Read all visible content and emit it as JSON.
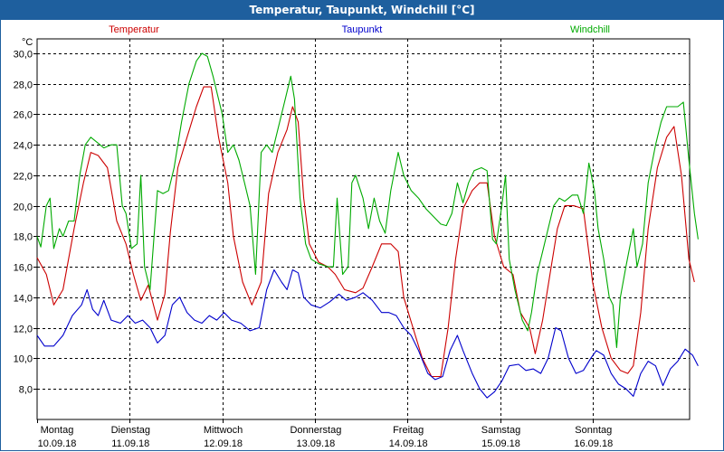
{
  "window": {
    "title": "Temperatur, Taupunkt, Windchill [°C]"
  },
  "colors": {
    "temperatur": "#cc0000",
    "taupunkt": "#0000cc",
    "windchill": "#00aa00",
    "title_bg": "#1e5f9e",
    "grid": "#000000"
  },
  "chart_data": {
    "type": "line",
    "title": "Temperatur, Taupunkt, Windchill [°C]",
    "ylabel": "°C",
    "ylim": [
      6.5,
      31.5
    ],
    "yticks": [
      8,
      10,
      12,
      14,
      16,
      18,
      20,
      22,
      24,
      26,
      28,
      30
    ],
    "ytick_labels": [
      "8,0",
      "10,0",
      "12,0",
      "14,0",
      "16,0",
      "18,0",
      "20,0",
      "22,0",
      "24,0",
      "26,0",
      "28,0",
      "30,0"
    ],
    "xlim": [
      0,
      7
    ],
    "x_ticks": [
      {
        "x": 0,
        "day": "Montag",
        "date": "10.09.18"
      },
      {
        "x": 1,
        "day": "Dienstag",
        "date": "11.09.18"
      },
      {
        "x": 2,
        "day": "Mittwoch",
        "date": "12.09.18"
      },
      {
        "x": 3,
        "day": "Donnerstag",
        "date": "13.09.18"
      },
      {
        "x": 4,
        "day": "Freitag",
        "date": "14.09.18"
      },
      {
        "x": 5,
        "day": "Samstag",
        "date": "15.09.18"
      },
      {
        "x": 6,
        "day": "Sonntag",
        "date": "16.09.18"
      }
    ],
    "legend": [
      "Temperatur",
      "Taupunkt",
      "Windchill"
    ],
    "series": [
      {
        "name": "Temperatur",
        "color": "#cc0000",
        "points": [
          [
            0.0,
            16.6
          ],
          [
            0.1,
            15.5
          ],
          [
            0.18,
            13.5
          ],
          [
            0.28,
            14.5
          ],
          [
            0.4,
            18.5
          ],
          [
            0.5,
            21.5
          ],
          [
            0.58,
            23.5
          ],
          [
            0.66,
            23.3
          ],
          [
            0.76,
            22.5
          ],
          [
            0.86,
            19.0
          ],
          [
            0.96,
            17.5
          ],
          [
            1.04,
            15.5
          ],
          [
            1.12,
            13.8
          ],
          [
            1.2,
            14.8
          ],
          [
            1.3,
            12.5
          ],
          [
            1.38,
            14.2
          ],
          [
            1.44,
            18.3
          ],
          [
            1.52,
            22.5
          ],
          [
            1.62,
            24.5
          ],
          [
            1.72,
            26.5
          ],
          [
            1.8,
            27.8
          ],
          [
            1.88,
            27.8
          ],
          [
            1.96,
            24.5
          ],
          [
            2.06,
            21.5
          ],
          [
            2.12,
            18.0
          ],
          [
            2.22,
            15.0
          ],
          [
            2.32,
            13.5
          ],
          [
            2.42,
            15.0
          ],
          [
            2.5,
            20.8
          ],
          [
            2.6,
            23.5
          ],
          [
            2.7,
            25.0
          ],
          [
            2.76,
            26.5
          ],
          [
            2.82,
            25.5
          ],
          [
            2.88,
            20.5
          ],
          [
            2.94,
            17.5
          ],
          [
            3.04,
            16.3
          ],
          [
            3.14,
            16.0
          ],
          [
            3.22,
            15.5
          ],
          [
            3.32,
            14.5
          ],
          [
            3.44,
            14.3
          ],
          [
            3.52,
            14.6
          ],
          [
            3.62,
            16.0
          ],
          [
            3.72,
            17.5
          ],
          [
            3.82,
            17.5
          ],
          [
            3.9,
            17.0
          ],
          [
            3.96,
            14.0
          ],
          [
            4.06,
            12.0
          ],
          [
            4.16,
            10.0
          ],
          [
            4.26,
            8.8
          ],
          [
            4.36,
            8.8
          ],
          [
            4.44,
            12.0
          ],
          [
            4.52,
            16.5
          ],
          [
            4.6,
            19.8
          ],
          [
            4.7,
            21.0
          ],
          [
            4.78,
            21.5
          ],
          [
            4.86,
            21.5
          ],
          [
            4.94,
            18.0
          ],
          [
            5.04,
            16.0
          ],
          [
            5.14,
            15.5
          ],
          [
            5.22,
            13.0
          ],
          [
            5.32,
            12.0
          ],
          [
            5.38,
            10.3
          ],
          [
            5.46,
            12.5
          ],
          [
            5.54,
            15.5
          ],
          [
            5.62,
            18.5
          ],
          [
            5.7,
            20.0
          ],
          [
            5.8,
            20.0
          ],
          [
            5.9,
            19.8
          ],
          [
            6.0,
            15.0
          ],
          [
            6.1,
            12.0
          ],
          [
            6.2,
            10.0
          ],
          [
            6.3,
            9.2
          ],
          [
            6.38,
            9.0
          ],
          [
            6.44,
            9.5
          ],
          [
            6.52,
            13.0
          ],
          [
            6.6,
            18.5
          ],
          [
            6.7,
            22.5
          ],
          [
            6.8,
            24.5
          ],
          [
            6.88,
            25.2
          ],
          [
            6.96,
            22.0
          ],
          [
            7.04,
            16.5
          ],
          [
            7.1,
            15.0
          ]
        ]
      },
      {
        "name": "Taupunkt",
        "color": "#0000cc",
        "points": [
          [
            0.0,
            11.5
          ],
          [
            0.08,
            10.8
          ],
          [
            0.18,
            10.8
          ],
          [
            0.28,
            11.5
          ],
          [
            0.38,
            12.8
          ],
          [
            0.48,
            13.5
          ],
          [
            0.54,
            14.5
          ],
          [
            0.6,
            13.2
          ],
          [
            0.66,
            12.8
          ],
          [
            0.72,
            13.8
          ],
          [
            0.8,
            12.5
          ],
          [
            0.9,
            12.3
          ],
          [
            0.98,
            12.8
          ],
          [
            1.06,
            12.3
          ],
          [
            1.14,
            12.5
          ],
          [
            1.22,
            12.0
          ],
          [
            1.3,
            11.0
          ],
          [
            1.38,
            11.5
          ],
          [
            1.46,
            13.5
          ],
          [
            1.54,
            14.0
          ],
          [
            1.62,
            13.0
          ],
          [
            1.7,
            12.5
          ],
          [
            1.78,
            12.3
          ],
          [
            1.86,
            12.8
          ],
          [
            1.94,
            12.5
          ],
          [
            2.02,
            13.0
          ],
          [
            2.1,
            12.5
          ],
          [
            2.2,
            12.3
          ],
          [
            2.3,
            11.8
          ],
          [
            2.4,
            12.0
          ],
          [
            2.48,
            14.5
          ],
          [
            2.56,
            15.8
          ],
          [
            2.64,
            15.0
          ],
          [
            2.7,
            14.5
          ],
          [
            2.76,
            15.8
          ],
          [
            2.82,
            15.6
          ],
          [
            2.88,
            14.0
          ],
          [
            2.96,
            13.5
          ],
          [
            3.06,
            13.3
          ],
          [
            3.16,
            13.7
          ],
          [
            3.26,
            14.2
          ],
          [
            3.34,
            13.8
          ],
          [
            3.44,
            14.0
          ],
          [
            3.52,
            14.3
          ],
          [
            3.62,
            13.8
          ],
          [
            3.72,
            13.0
          ],
          [
            3.8,
            13.0
          ],
          [
            3.88,
            12.8
          ],
          [
            3.96,
            12.0
          ],
          [
            4.04,
            11.5
          ],
          [
            4.12,
            10.5
          ],
          [
            4.22,
            9.0
          ],
          [
            4.3,
            8.6
          ],
          [
            4.38,
            8.8
          ],
          [
            4.46,
            10.5
          ],
          [
            4.54,
            11.5
          ],
          [
            4.6,
            10.5
          ],
          [
            4.7,
            9.0
          ],
          [
            4.78,
            8.0
          ],
          [
            4.86,
            7.4
          ],
          [
            4.94,
            7.8
          ],
          [
            5.02,
            8.5
          ],
          [
            5.1,
            9.5
          ],
          [
            5.2,
            9.6
          ],
          [
            5.28,
            9.2
          ],
          [
            5.36,
            9.3
          ],
          [
            5.44,
            9.0
          ],
          [
            5.52,
            10.0
          ],
          [
            5.6,
            12.0
          ],
          [
            5.66,
            11.8
          ],
          [
            5.74,
            10.0
          ],
          [
            5.82,
            9.0
          ],
          [
            5.9,
            9.2
          ],
          [
            5.98,
            10.0
          ],
          [
            6.04,
            10.5
          ],
          [
            6.12,
            10.2
          ],
          [
            6.2,
            9.0
          ],
          [
            6.28,
            8.3
          ],
          [
            6.36,
            8.0
          ],
          [
            6.44,
            7.5
          ],
          [
            6.52,
            9.0
          ],
          [
            6.6,
            9.8
          ],
          [
            6.68,
            9.5
          ],
          [
            6.76,
            8.2
          ],
          [
            6.84,
            9.3
          ],
          [
            6.92,
            9.8
          ],
          [
            7.0,
            10.6
          ],
          [
            7.08,
            10.2
          ],
          [
            7.14,
            9.5
          ]
        ]
      },
      {
        "name": "Windchill",
        "color": "#00aa00",
        "points": [
          [
            0.0,
            18.0
          ],
          [
            0.04,
            17.3
          ],
          [
            0.1,
            20.0
          ],
          [
            0.14,
            20.5
          ],
          [
            0.18,
            17.2
          ],
          [
            0.24,
            18.5
          ],
          [
            0.28,
            18.0
          ],
          [
            0.34,
            19.0
          ],
          [
            0.4,
            19.0
          ],
          [
            0.46,
            22.0
          ],
          [
            0.52,
            24.0
          ],
          [
            0.58,
            24.5
          ],
          [
            0.64,
            24.2
          ],
          [
            0.72,
            23.8
          ],
          [
            0.8,
            24.0
          ],
          [
            0.86,
            24.0
          ],
          [
            0.92,
            20.0
          ],
          [
            0.96,
            19.5
          ],
          [
            1.02,
            17.2
          ],
          [
            1.08,
            17.5
          ],
          [
            1.12,
            22.0
          ],
          [
            1.16,
            16.0
          ],
          [
            1.22,
            14.5
          ],
          [
            1.3,
            21.0
          ],
          [
            1.36,
            20.8
          ],
          [
            1.42,
            21.0
          ],
          [
            1.48,
            22.5
          ],
          [
            1.56,
            25.5
          ],
          [
            1.64,
            28.0
          ],
          [
            1.72,
            29.5
          ],
          [
            1.78,
            30.0
          ],
          [
            1.84,
            29.8
          ],
          [
            1.9,
            28.5
          ],
          [
            1.96,
            27.0
          ],
          [
            2.0,
            26.0
          ],
          [
            2.06,
            23.5
          ],
          [
            2.12,
            24.0
          ],
          [
            2.18,
            23.0
          ],
          [
            2.24,
            21.5
          ],
          [
            2.3,
            20.0
          ],
          [
            2.36,
            15.5
          ],
          [
            2.42,
            23.5
          ],
          [
            2.48,
            24.0
          ],
          [
            2.54,
            23.5
          ],
          [
            2.6,
            25.0
          ],
          [
            2.68,
            27.0
          ],
          [
            2.74,
            28.5
          ],
          [
            2.78,
            27.0
          ],
          [
            2.84,
            20.5
          ],
          [
            2.9,
            17.5
          ],
          [
            2.96,
            16.5
          ],
          [
            3.04,
            16.2
          ],
          [
            3.14,
            16.0
          ],
          [
            3.2,
            16.0
          ],
          [
            3.24,
            20.5
          ],
          [
            3.3,
            15.5
          ],
          [
            3.36,
            16.0
          ],
          [
            3.4,
            21.5
          ],
          [
            3.44,
            22.0
          ],
          [
            3.52,
            20.5
          ],
          [
            3.58,
            18.5
          ],
          [
            3.64,
            20.5
          ],
          [
            3.7,
            19.0
          ],
          [
            3.76,
            18.2
          ],
          [
            3.82,
            21.0
          ],
          [
            3.9,
            23.5
          ],
          [
            3.96,
            22.0
          ],
          [
            4.04,
            21.0
          ],
          [
            4.12,
            20.5
          ],
          [
            4.2,
            19.8
          ],
          [
            4.28,
            19.3
          ],
          [
            4.36,
            18.8
          ],
          [
            4.42,
            18.7
          ],
          [
            4.48,
            19.5
          ],
          [
            4.54,
            21.5
          ],
          [
            4.6,
            20.2
          ],
          [
            4.66,
            21.5
          ],
          [
            4.72,
            22.3
          ],
          [
            4.8,
            22.5
          ],
          [
            4.86,
            22.3
          ],
          [
            4.92,
            17.8
          ],
          [
            4.96,
            17.5
          ],
          [
            5.02,
            20.0
          ],
          [
            5.06,
            22.0
          ],
          [
            5.1,
            16.5
          ],
          [
            5.16,
            14.5
          ],
          [
            5.24,
            12.5
          ],
          [
            5.3,
            11.8
          ],
          [
            5.34,
            13.0
          ],
          [
            5.4,
            15.5
          ],
          [
            5.46,
            17.0
          ],
          [
            5.52,
            18.5
          ],
          [
            5.58,
            20.0
          ],
          [
            5.64,
            20.5
          ],
          [
            5.7,
            20.3
          ],
          [
            5.78,
            20.7
          ],
          [
            5.84,
            20.7
          ],
          [
            5.9,
            19.5
          ],
          [
            5.96,
            22.8
          ],
          [
            6.02,
            21.0
          ],
          [
            6.06,
            18.5
          ],
          [
            6.12,
            16.5
          ],
          [
            6.18,
            14.0
          ],
          [
            6.22,
            13.5
          ],
          [
            6.26,
            10.7
          ],
          [
            6.3,
            14.0
          ],
          [
            6.36,
            16.0
          ],
          [
            6.44,
            18.5
          ],
          [
            6.48,
            16.0
          ],
          [
            6.54,
            17.5
          ],
          [
            6.6,
            21.5
          ],
          [
            6.68,
            24.0
          ],
          [
            6.74,
            25.5
          ],
          [
            6.8,
            26.5
          ],
          [
            6.86,
            26.5
          ],
          [
            6.92,
            26.5
          ],
          [
            6.98,
            26.8
          ],
          [
            7.04,
            23.0
          ],
          [
            7.1,
            19.5
          ],
          [
            7.14,
            17.8
          ]
        ]
      }
    ]
  }
}
